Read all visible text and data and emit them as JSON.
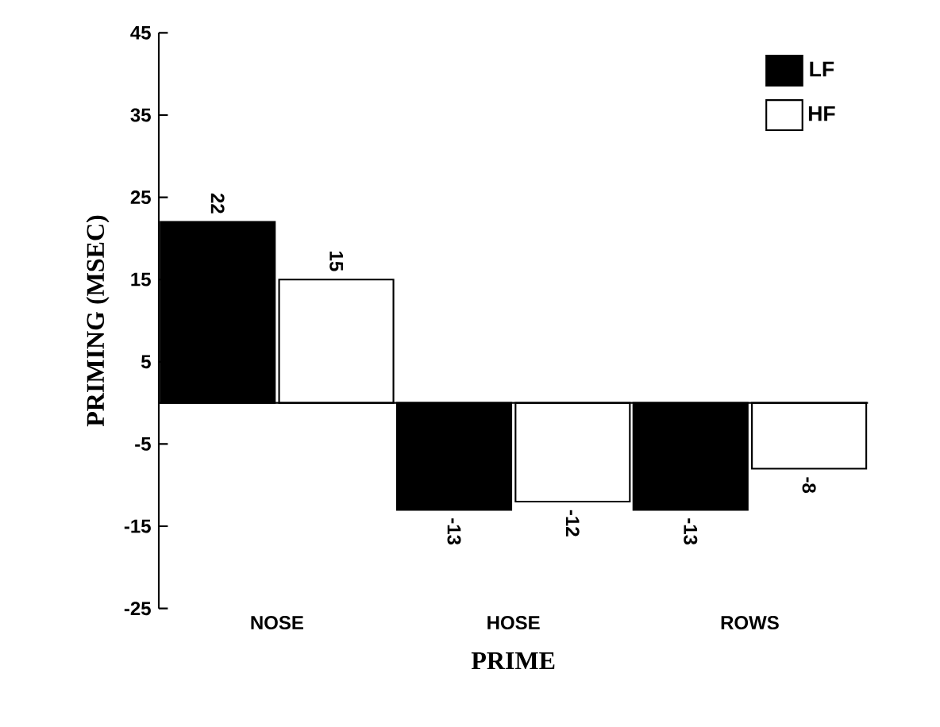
{
  "chart_data": {
    "type": "bar",
    "xlabel": "PRIME",
    "ylabel": "PRIMING (MSEC)",
    "categories": [
      "NOSE",
      "HOSE",
      "ROWS"
    ],
    "series": [
      {
        "name": "LF",
        "color": "#000000",
        "values": [
          22,
          -13,
          -13
        ]
      },
      {
        "name": "HF",
        "color": "#ffffff",
        "values": [
          15,
          -12,
          -8
        ]
      }
    ],
    "ylim": [
      -25,
      45
    ],
    "yticks": [
      -25,
      -15,
      -5,
      5,
      15,
      25,
      35,
      45
    ],
    "data_labels": true,
    "legend": "top right",
    "grid": false
  }
}
